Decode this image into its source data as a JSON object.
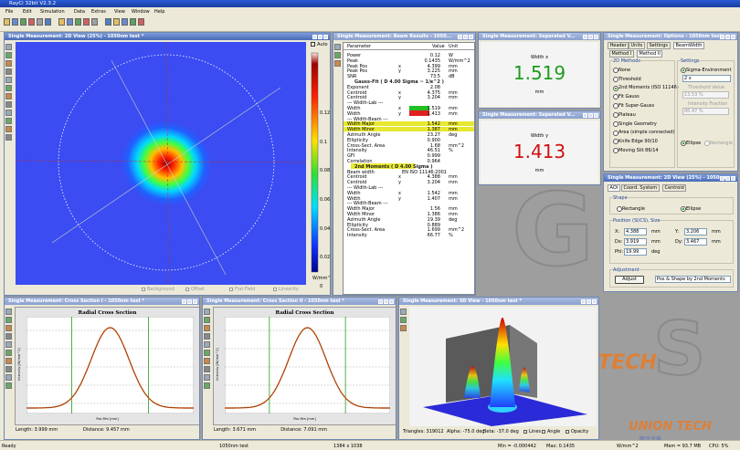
{
  "app": {
    "title": "RayCi 32bit V2.3.2",
    "menu": [
      "File",
      "Edit",
      "Simulation",
      "Data",
      "Extras",
      "View",
      "Window",
      "Help"
    ]
  },
  "view2d": {
    "title": "Single Measurement: 2D View (25%) - 1050nm test *",
    "auto": "Auto",
    "scale": [
      "0.12",
      "0.1",
      "0.08",
      "0.06",
      "0.04",
      "0.02",
      "0"
    ],
    "unit": "W/mm^2",
    "options": [
      "Background",
      "Offset",
      "Flat Field",
      "Linearity"
    ]
  },
  "results": {
    "title": "Single Measurement: Beam Results - 1050...",
    "header": [
      "Parameter",
      "Value",
      "Unit"
    ],
    "rows": [
      {
        "p": "Power",
        "v": "0.12",
        "u": "W"
      },
      {
        "p": "Peak",
        "v": "0.1435",
        "u": "W/mm^2"
      },
      {
        "p": "Peak Pos",
        "a": "x",
        "v": "4.399",
        "u": "mm"
      },
      {
        "p": "Peak Pos",
        "a": "y",
        "v": "3.225",
        "u": "mm"
      },
      {
        "p": "SNR",
        "v": "73.5",
        "u": "dB"
      },
      {
        "h": "Gauss-Fit ( D 4.00 Sigma ~ 1/e^2 )"
      },
      {
        "p": "Exponent",
        "v": "2.08"
      },
      {
        "p": "Centroid",
        "a": "x",
        "v": "4.375",
        "u": "mm"
      },
      {
        "p": "Centroid",
        "a": "y",
        "v": "3.204",
        "u": "mm"
      },
      {
        "p": "--- Width-Lab ---"
      },
      {
        "p": "Width",
        "a": "x",
        "v": "1.519",
        "u": "mm",
        "vbg": "#22c022"
      },
      {
        "p": "Width",
        "a": "y",
        "v": "1.413",
        "u": "mm",
        "vbg": "#e02020"
      },
      {
        "p": "--- Width-Beam ---"
      },
      {
        "p": "Width Major",
        "v": "1.542",
        "u": "mm",
        "bg": "#e8e830"
      },
      {
        "p": "Width Minor",
        "v": "1.387",
        "u": "mm",
        "bg": "#e8e830"
      },
      {
        "p": "Azimuth Angle",
        "v": "23.27",
        "u": "deg"
      },
      {
        "p": "Ellipticity",
        "v": "0.900"
      },
      {
        "p": "Cross-Sect. Area",
        "v": "1.68",
        "u": "mm^2"
      },
      {
        "p": "Intensity",
        "v": "46.51",
        "u": "%"
      },
      {
        "p": "GFI",
        "v": "0.999"
      },
      {
        "p": "Correlation",
        "v": "0.964"
      },
      {
        "h": "2nd Moments ( D 4.00 Sigma )",
        "bg": "#e8e830"
      },
      {
        "p": "Beam width",
        "v": "EN ISO 11146:2001"
      },
      {
        "p": "Centroid",
        "a": "x",
        "v": "4.388",
        "u": "mm"
      },
      {
        "p": "Centroid",
        "a": "y",
        "v": "3.204",
        "u": "mm"
      },
      {
        "p": "--- Width-Lab ---"
      },
      {
        "p": "Width",
        "a": "x",
        "v": "1.542",
        "u": "mm"
      },
      {
        "p": "Width",
        "a": "y",
        "v": "1.407",
        "u": "mm"
      },
      {
        "p": "--- Width-Beam ---"
      },
      {
        "p": "Width Major",
        "v": "1.56",
        "u": "mm"
      },
      {
        "p": "Width Minor",
        "v": "1.386",
        "u": "mm"
      },
      {
        "p": "Azimuth Angle",
        "v": "19.39",
        "u": "deg"
      },
      {
        "p": "Ellipticity",
        "v": "0.889"
      },
      {
        "p": "Cross-Sect. Area",
        "v": "1.699",
        "u": "mm^2"
      },
      {
        "p": "Intensity",
        "v": "66.77",
        "u": "%"
      }
    ]
  },
  "sep1": {
    "title": "Single Measurement: Separated V...",
    "label": "Width x",
    "value": "1.519",
    "unit": "mm",
    "color": "#1c9c1c"
  },
  "sep2": {
    "title": "Single Measurement: Separated V...",
    "label": "Width y",
    "value": "1.413",
    "unit": "mm",
    "color": "#d01010"
  },
  "options": {
    "title": "Single Measurement: Options - 1050nm test",
    "tabs": [
      "Header",
      "Units",
      "Settings",
      "BeamWidth"
    ],
    "subtabs": [
      "Method I",
      "Method II"
    ],
    "methods_title": "2D Methods",
    "methods": [
      "None",
      "Threshold",
      "2nd Moments (ISO 11146)",
      "Fit Gauss",
      "Fit Super-Gauss",
      "Plateau",
      "Single Geometry",
      "Area (simple connected)",
      "Knife Edge 90/10",
      "Moving Slit 86/14"
    ],
    "selected": 2,
    "settings_title": "Settings",
    "sigma": "Sigma-Environment",
    "sigma_value": "2 x",
    "threshold": "Threshold Value",
    "threshold_value": "13.53 %",
    "fraction": "Intensity Fraction",
    "fraction_value": "86.47 %",
    "ellipse": "Ellipse",
    "rectangle": "Rectangle"
  },
  "aoi": {
    "title": "Single Measurement: 2D View (25%) - 1050nm test",
    "tabs": [
      "AOI",
      "Coord. System",
      "Centroid"
    ],
    "shape": "Shape",
    "shapes": [
      "Rectangle",
      "Ellipse"
    ],
    "pos_title": "Position (SI/CS), Size",
    "fields": [
      {
        "l": "X:",
        "v": "4.388",
        "u": "mm"
      },
      {
        "l": "Y:",
        "v": "3.206",
        "u": "mm"
      },
      {
        "l": "Dx:",
        "v": "3.919",
        "u": "mm"
      },
      {
        "l": "Dy:",
        "v": "3.467",
        "u": "mm"
      },
      {
        "l": "Phi:",
        "v": "19.99",
        "u": "deg"
      }
    ],
    "adjust_title": "Adjustment",
    "adjust": "Adjust",
    "adjust_mode": "Pos & Shape by 2nd Moments"
  },
  "cross1": {
    "title": "Single Measurement: Cross Section I - 1050nm test *",
    "chart": "Radial Cross Section",
    "ylabel": "Intensity [W/mm^2]",
    "xlabel": "Pos Mm [mm]",
    "length": "Length: 3.999 mm",
    "distance": "Distance: 9.457 mm"
  },
  "cross2": {
    "title": "Single Measurement: Cross Section II - 1050nm test *",
    "chart": "Radial Cross Section",
    "ylabel": "Intensity [W/mm^2]",
    "xlabel": "Pos Mm [mm]",
    "length": "Length: 3.671 mm",
    "distance": "Distance: 7.091 mm"
  },
  "view3d": {
    "title": "Single Measurement: 3D View - 1050nm test *",
    "triangles": "Triangles: 319012",
    "alpha": "Alpha: -75.0 deg",
    "beta": "Beta: -37.0 deg",
    "lines": "Lines",
    "angle": "Angle",
    "opacity": "Opacity"
  },
  "watermark": "UNION TECH",
  "watermark_cn": "联合光电",
  "status": [
    "Ready",
    "1050nm test",
    "1384 x 1038",
    "Min = -0.000442",
    "Max: 0.1435",
    "W/mm^2",
    "Mem = 93.7 MB",
    "CPU: 5%"
  ]
}
